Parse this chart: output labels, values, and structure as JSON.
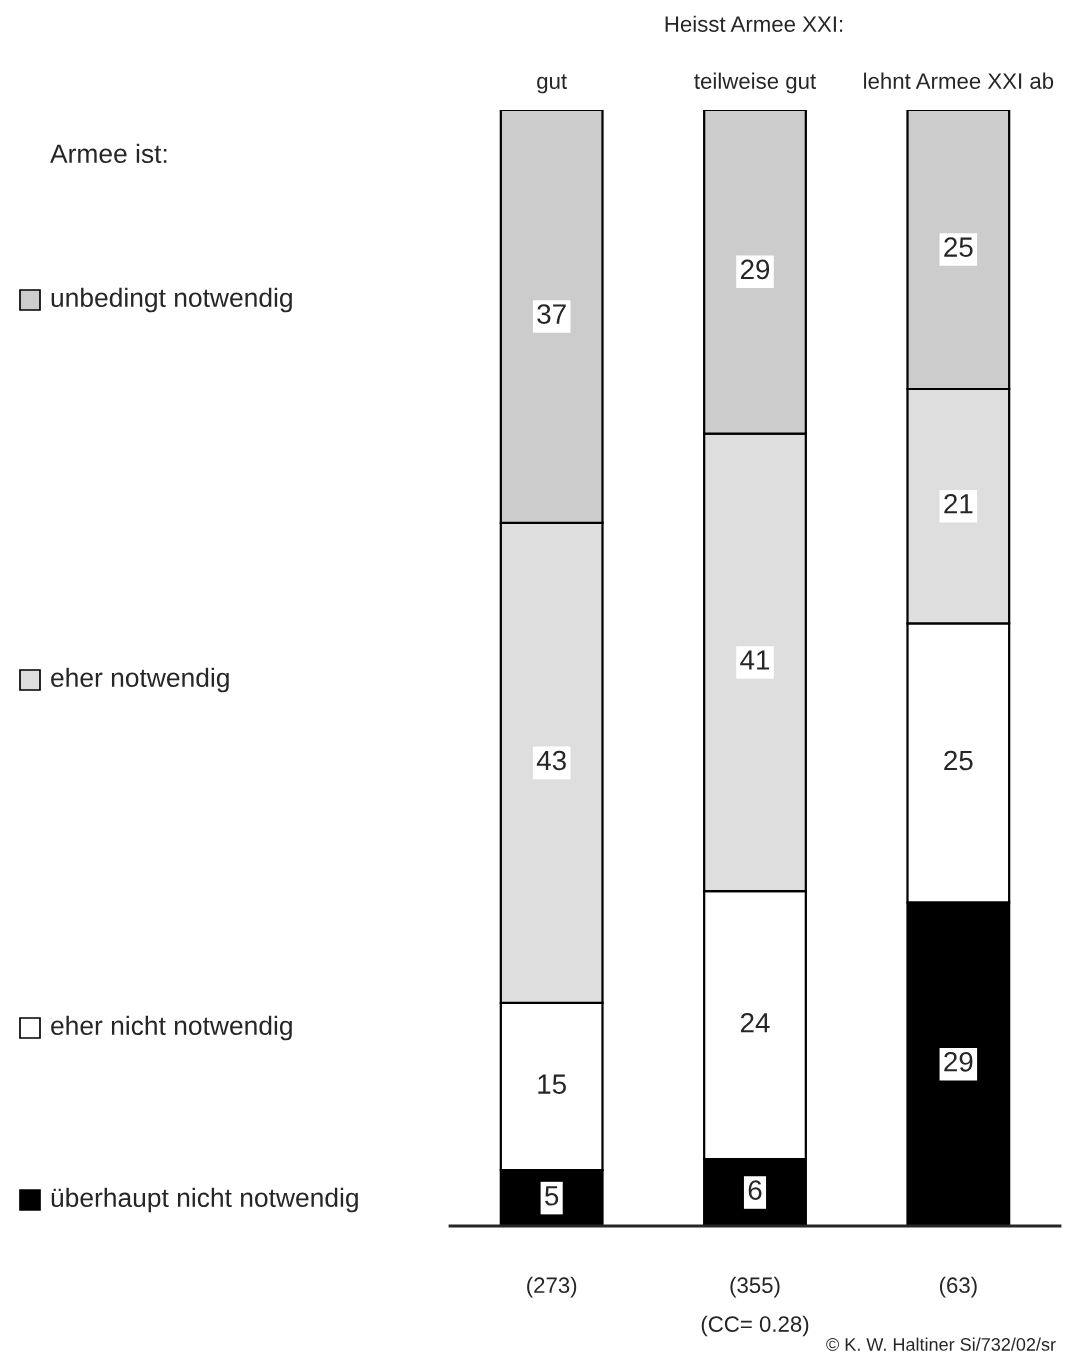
{
  "chart_data": {
    "type": "bar",
    "stacked": true,
    "data_labels": true,
    "title": "Heisst Armee XXI:",
    "legend": "left",
    "legend_title": "Armee ist:",
    "categories": [
      "gut",
      "teilweise gut",
      "lehnt Armee XXI ab"
    ],
    "series": [
      {
        "name": "überhaupt nicht notwendig",
        "color": "#000000",
        "values": [
          5,
          6,
          29
        ]
      },
      {
        "name": "eher nicht notwendig",
        "color": "#ffffff",
        "values": [
          15,
          24,
          25
        ]
      },
      {
        "name": "eher notwendig",
        "color": "#dedede",
        "values": [
          43,
          41,
          21
        ]
      },
      {
        "name": "unbedingt notwendig",
        "color": "#cccccc",
        "values": [
          37,
          29,
          25
        ]
      }
    ],
    "annotations": [
      "(273)",
      "(355)",
      "(63)",
      "(CC= 0.28)",
      "© K. W. Haltiner Si/732/02/sr"
    ]
  }
}
